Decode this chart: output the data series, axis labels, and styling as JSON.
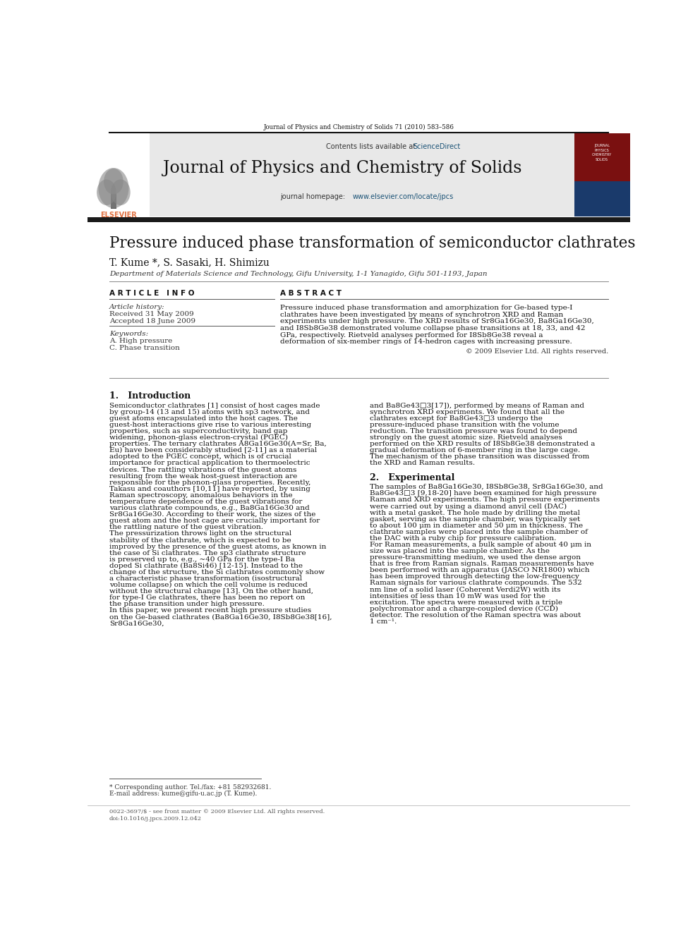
{
  "page_width": 9.92,
  "page_height": 13.23,
  "bg_color": "#ffffff",
  "top_journal_ref": "Journal of Physics and Chemistry of Solids 71 (2010) 583–586",
  "header_bg": "#e8e8e8",
  "header_contents": "Contents lists available at ",
  "header_sciencedirect": "ScienceDirect",
  "header_sciencedirect_color": "#1a5276",
  "journal_title": "Journal of Physics and Chemistry of Solids",
  "journal_homepage_prefix": "journal homepage: ",
  "journal_homepage_url": "www.elsevier.com/locate/jpcs",
  "journal_homepage_url_color": "#1a5276",
  "dark_bar_color": "#1a1a1a",
  "paper_title": "Pressure induced phase transformation of semiconductor clathrates",
  "authors": "T. Kume *, S. Sasaki, H. Shimizu",
  "affiliation": "Department of Materials Science and Technology, Gifu University, 1-1 Yanagido, Gifu 501-1193, Japan",
  "article_info_header": "A R T I C L E   I N F O",
  "abstract_header": "A B S T R A C T",
  "article_history_label": "Article history:",
  "received": "Received 31 May 2009",
  "accepted": "Accepted 18 June 2009",
  "keywords_label": "Keywords:",
  "keyword1": "A. High pressure",
  "keyword2": "C. Phase transition",
  "abstract_text": "Pressure induced phase transformation and amorphization for Ge-based type-I clathrates have been investigated by means of synchrotron XRD and Raman experiments under high pressure. The XRD results of Sr8Ga16Ge30, Ba8Ga16Ge30, and I8Sb8Ge38 demonstrated volume collapse phase transitions at 18, 33, and 42 GPa, respectively. Rietveld analyses performed for I8Sb8Ge38 reveal a deformation of six-member rings of 14-hedron cages with increasing pressure.",
  "copyright": "© 2009 Elsevier Ltd. All rights reserved.",
  "section1_title": "1.   Introduction",
  "section1_col1": "    Semiconductor clathrates [1] consist of host cages made by group-14 (13 and 15) atoms with sp3 network, and guest atoms encapsulated into the host cages. The guest-host interactions give rise to various interesting properties, such as superconductivity, band gap widening, phonon-glass electron-crystal (PGEC) properties. The ternary clathrates A8Ga16Ge30(A=Sr, Ba, Eu) have been considerably studied [2-11] as a material adopted to the PGEC concept, which is of crucial importance for practical application to thermoelectric devices. The rattling vibrations of the guest atoms resulting from the weak host-guest interaction are responsible for the phonon-glass properties. Recently, Takasu and coauthors [10,11] have reported, by using Raman spectroscopy, anomalous behaviors in the temperature dependence of the guest vibrations for various clathrate compounds, e.g., Ba8Ga16Ge30 and Sr8Ga16Ge30. According to their work, the sizes of the guest atom and the host cage are crucially important for the rattling nature of the guest vibration.\n    The pressurization throws light on the structural stability of the clathrate, which is expected to be improved by the presence of the guest atoms, as known in the case of Si clathrates. The sp3 clathrate structure is preserved up to, e.g., ~40 GPa for the type-I Ba doped Si clathrate (Ba8Si46) [12-15]. Instead to the change of the structure, the Si clathrates commonly show a characteristic phase transformation (isostructural volume collapse) on which the cell volume is reduced without the structural change [13]. On the other hand, for type-I Ge clathrates, there has been no report on the phase transition under high pressure.\n    In this paper, we present recent high pressure studies on the Ge-based clathrates (Ba8Ga16Ge30, I8Sb8Ge38[16], Sr8Ga16Ge30,",
  "section1_col2": "and Ba8Ge43□3[17]), performed by means of Raman and synchrotron XRD experiments. We found that all the clathrates except for Ba8Ge43□3 undergo the pressure-induced phase transition with the volume reduction. The transition pressure was found to depend strongly on the guest atomic size. Rietveld analyses performed on the XRD results of I8Sb8Ge38 demonstrated a gradual deformation of 6-member ring in the large cage. The mechanism of the phase transition was discussed from the XRD and Raman results.",
  "section2_title": "2.   Experimental",
  "section2_col2": "    The samples of Ba8Ga16Ge30, I8Sb8Ge38, Sr8Ga16Ge30, and Ba8Ge43□3 [9,18-20] have been examined for high pressure Raman and XRD experiments. The high pressure experiments were carried out by using a diamond anvil cell (DAC) with a metal gasket. The hole made by drilling the metal gasket, serving as the sample chamber, was typically set to about 100 μm in diameter and 50 μm in thickness. The clathrate samples were placed into the sample chamber of the DAC with a ruby chip for pressure calibration.\n    For Raman measurements, a bulk sample of about 40 μm in size was placed into the sample chamber. As the pressure-transmitting medium, we used the dense argon that is free from Raman signals. Raman measurements have been performed with an apparatus (JASCO NR1800) which has been improved through detecting the low-frequency Raman signals for various clathrate compounds. The 532 nm line of a solid laser (Coherent Verdi2W) with its intensities of less than 10 mW was used for the excitation. The spectra were measured with a triple polychromator and a charge-coupled device (CCD) detector. The resolution of the Raman spectra was about 1 cm⁻¹.",
  "footnote1": "* Corresponding author. Tel./fax: +81 582932681.",
  "footnote2": "E-mail address: kume@gifu-u.ac.jp (T. Kume).",
  "footer1": "0022-3697/$ - see front matter © 2009 Elsevier Ltd. All rights reserved.",
  "footer2": "doi:10.1016/j.jpcs.2009.12.042",
  "elsevier_color": "#e07040"
}
